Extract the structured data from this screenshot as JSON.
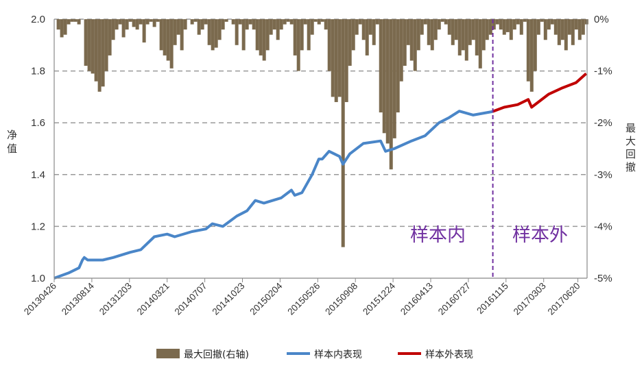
{
  "chart_data": {
    "type": "line",
    "title": "",
    "ylabel_left": "净值",
    "ylabel_right": "最大回撤",
    "ylim_left": [
      1.0,
      2.0
    ],
    "ylim_right": [
      -5,
      0
    ],
    "yticks_left": [
      "1.0",
      "1.2",
      "1.4",
      "1.6",
      "1.8",
      "2.0"
    ],
    "yticks_right": [
      "-5%",
      "-4%",
      "-3%",
      "-2%",
      "-1%",
      "0%"
    ],
    "x_tick_labels": [
      "20130426",
      "20130814",
      "20131203",
      "20140321",
      "20140707",
      "20141023",
      "20150204",
      "20150526",
      "20150908",
      "20151224",
      "20160413",
      "20160727",
      "20161115",
      "20170303",
      "20170620"
    ],
    "grid": "horizontal dashed",
    "legend_position": "bottom",
    "split_label_in": "样本内",
    "split_label_out": "样本外",
    "split_at_t": 11.65,
    "colors": {
      "drawdown": "#7b6a4e",
      "in_sample": "#4a86c8",
      "out_sample": "#c00000",
      "split": "#7030a0"
    },
    "series": [
      {
        "name": "最大回撤(右轴)",
        "type": "bar",
        "axis": "right",
        "t_start": 0.02,
        "t_step": 0.0911,
        "values": [
          0,
          -0.2,
          -0.35,
          -0.3,
          -0.1,
          -0.05,
          -0.05,
          -0.1,
          0,
          -0.9,
          -1.0,
          -1.05,
          -1.2,
          -1.4,
          -1.3,
          -1.0,
          -0.7,
          -0.4,
          -0.2,
          -0.1,
          -0.35,
          -0.2,
          -0.05,
          -0.15,
          -0.2,
          -0.1,
          -0.45,
          -0.1,
          -0.05,
          -0.15,
          -0.05,
          -0.6,
          -0.7,
          -0.8,
          -0.95,
          -0.5,
          -0.3,
          -0.6,
          -0.2,
          0,
          -0.1,
          -0.05,
          -0.3,
          -0.2,
          -0.1,
          -0.5,
          -0.6,
          -0.55,
          -0.4,
          -0.2,
          -0.05,
          0,
          -0.1,
          -0.5,
          -0.1,
          -0.6,
          -0.2,
          -0.1,
          -0.2,
          -0.6,
          -0.7,
          -0.8,
          -0.6,
          -0.3,
          -0.2,
          -0.4,
          -0.2,
          -0.1,
          -0.05,
          -0.1,
          -0.7,
          -1.0,
          -0.6,
          -0.1,
          -0.6,
          -0.3,
          -0.05,
          -0.1,
          -0.05,
          -0.2,
          -1.0,
          -1.5,
          -1.6,
          -1.5,
          -4.4,
          -1.6,
          -0.9,
          -0.6,
          -0.3,
          -0.1,
          -0.4,
          -0.7,
          -0.3,
          -0.5,
          -0.1,
          -1.8,
          -2.2,
          -2.4,
          -2.9,
          -2.3,
          -1.8,
          -1.2,
          -0.9,
          -0.5,
          -0.8,
          -1.0,
          -0.6,
          -0.3,
          -0.1,
          -0.5,
          -0.6,
          -0.4,
          -0.2,
          -0.05,
          -0.1,
          -0.3,
          -0.5,
          -0.4,
          -0.7,
          -0.6,
          -0.8,
          -0.5,
          -0.4,
          -0.7,
          -0.95,
          -0.6,
          -0.4,
          -0.3,
          -0.2,
          -0.1,
          -0.2,
          -0.3,
          -0.25,
          -0.4,
          -0.2,
          -0.1,
          -0.3,
          -0.05,
          -1.2,
          -1.4,
          -1.0,
          -0.3,
          -0.05,
          -0.4,
          -0.2,
          -0.1,
          -0.3,
          -0.5,
          -0.4,
          -0.6,
          -0.3,
          -0.5,
          -0.2,
          -0.4,
          -0.3,
          -0.1
        ]
      },
      {
        "name": "样本内表现",
        "type": "line",
        "axis": "left",
        "points": [
          [
            0,
            1.0
          ],
          [
            0.38,
            1.02
          ],
          [
            0.66,
            1.04
          ],
          [
            0.75,
            1.07
          ],
          [
            0.8,
            1.08
          ],
          [
            0.89,
            1.07
          ],
          [
            1.29,
            1.07
          ],
          [
            1.57,
            1.08
          ],
          [
            2.02,
            1.1
          ],
          [
            2.3,
            1.11
          ],
          [
            2.66,
            1.16
          ],
          [
            3.0,
            1.17
          ],
          [
            3.2,
            1.16
          ],
          [
            3.66,
            1.18
          ],
          [
            4.03,
            1.19
          ],
          [
            4.2,
            1.21
          ],
          [
            4.48,
            1.2
          ],
          [
            4.85,
            1.24
          ],
          [
            5.12,
            1.26
          ],
          [
            5.34,
            1.3
          ],
          [
            5.57,
            1.29
          ],
          [
            6.03,
            1.31
          ],
          [
            6.3,
            1.34
          ],
          [
            6.39,
            1.32
          ],
          [
            6.58,
            1.33
          ],
          [
            6.85,
            1.4
          ],
          [
            7.03,
            1.46
          ],
          [
            7.12,
            1.46
          ],
          [
            7.3,
            1.49
          ],
          [
            7.58,
            1.47
          ],
          [
            7.67,
            1.44
          ],
          [
            7.85,
            1.48
          ],
          [
            8.21,
            1.52
          ],
          [
            8.67,
            1.53
          ],
          [
            8.8,
            1.49
          ],
          [
            9.03,
            1.5
          ],
          [
            9.49,
            1.53
          ],
          [
            9.85,
            1.55
          ],
          [
            10.22,
            1.6
          ],
          [
            10.49,
            1.62
          ],
          [
            10.76,
            1.645
          ],
          [
            11.13,
            1.63
          ],
          [
            11.64,
            1.643
          ]
        ]
      },
      {
        "name": "样本外表现",
        "type": "line",
        "axis": "left",
        "points": [
          [
            11.64,
            1.643
          ],
          [
            11.95,
            1.66
          ],
          [
            12.31,
            1.67
          ],
          [
            12.59,
            1.69
          ],
          [
            12.68,
            1.66
          ],
          [
            13.13,
            1.71
          ],
          [
            13.5,
            1.735
          ],
          [
            13.86,
            1.755
          ],
          [
            14.13,
            1.79
          ]
        ]
      }
    ]
  }
}
